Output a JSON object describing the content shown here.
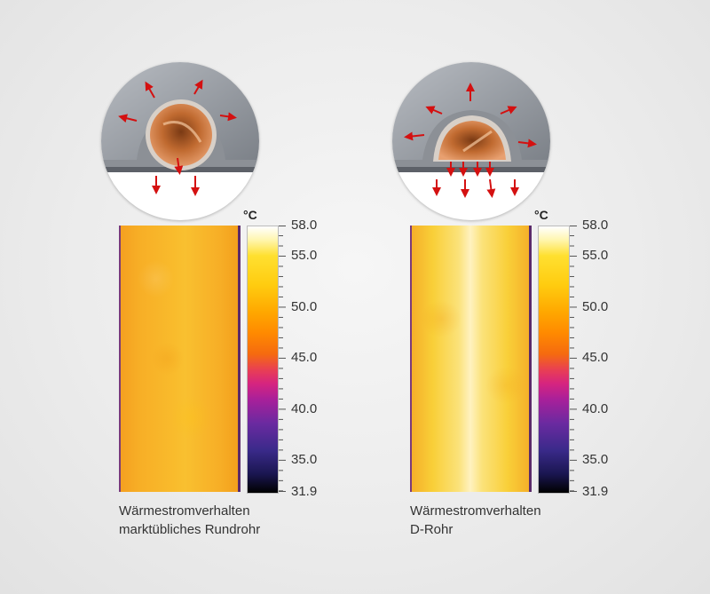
{
  "unit": "°C",
  "scale_labels": [
    "58.0",
    "55.0",
    "50.0",
    "45.0",
    "40.0",
    "35.0",
    "31.9"
  ],
  "scale_values": [
    58.0,
    55.0,
    50.0,
    45.0,
    40.0,
    35.0,
    31.9
  ],
  "scale_range": [
    31.9,
    58.0
  ],
  "panels": [
    {
      "caption_line1": "Wärmestromverhalten",
      "caption_line2": "marktübliches Rundrohr"
    },
    {
      "caption_line1": "Wärmestromverhalten",
      "caption_line2": "D-Rohr"
    }
  ]
}
